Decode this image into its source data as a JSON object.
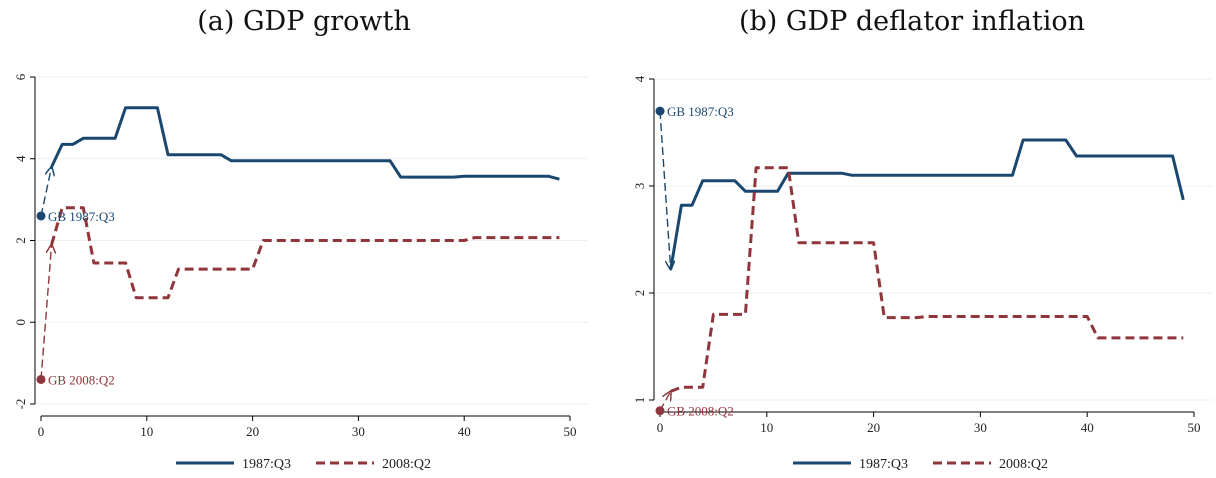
{
  "colors": {
    "series1": "#1a476f",
    "series2": "#90353b",
    "grid": "#eaf2f3",
    "axis": "#000000"
  },
  "chart_data": [
    {
      "type": "line",
      "title": "(a) GDP growth",
      "xlim": [
        0,
        50
      ],
      "ylim": [
        -2,
        6
      ],
      "xticks": [
        0,
        10,
        20,
        30,
        40,
        50
      ],
      "yticks": [
        -2,
        0,
        2,
        4,
        6
      ],
      "grid": true,
      "legend_position": "bottom",
      "series": [
        {
          "name": "1987:Q3",
          "style": "solid",
          "color": "#1a476f",
          "x": [
            1,
            2,
            3,
            4,
            5,
            6,
            7,
            8,
            9,
            10,
            11,
            12,
            13,
            14,
            15,
            16,
            17,
            18,
            19,
            20,
            21,
            22,
            23,
            24,
            25,
            26,
            27,
            28,
            29,
            30,
            31,
            32,
            33,
            34,
            35,
            36,
            37,
            38,
            39,
            40,
            41,
            42,
            43,
            44,
            45,
            46,
            47,
            48,
            49
          ],
          "y": [
            3.8,
            4.35,
            4.35,
            4.5,
            4.5,
            4.5,
            4.5,
            5.25,
            5.25,
            5.25,
            5.25,
            4.1,
            4.1,
            4.1,
            4.1,
            4.1,
            4.1,
            3.95,
            3.95,
            3.95,
            3.95,
            3.95,
            3.95,
            3.95,
            3.95,
            3.95,
            3.95,
            3.95,
            3.95,
            3.95,
            3.95,
            3.95,
            3.95,
            3.55,
            3.55,
            3.55,
            3.55,
            3.55,
            3.55,
            3.57,
            3.57,
            3.57,
            3.57,
            3.57,
            3.57,
            3.57,
            3.57,
            3.57,
            3.5
          ]
        },
        {
          "name": "2008:Q2",
          "style": "dashed",
          "color": "#90353b",
          "x": [
            1,
            2,
            3,
            4,
            5,
            6,
            7,
            8,
            9,
            10,
            11,
            12,
            13,
            14,
            15,
            16,
            17,
            18,
            19,
            20,
            21,
            22,
            23,
            24,
            25,
            26,
            27,
            28,
            29,
            30,
            31,
            32,
            33,
            34,
            35,
            36,
            37,
            38,
            39,
            40,
            41,
            42,
            43,
            44,
            45,
            46,
            47,
            48,
            49
          ],
          "y": [
            1.9,
            2.8,
            2.8,
            2.8,
            1.45,
            1.45,
            1.45,
            1.45,
            0.6,
            0.6,
            0.6,
            0.6,
            1.3,
            1.3,
            1.3,
            1.3,
            1.3,
            1.3,
            1.3,
            1.3,
            2.0,
            2.0,
            2.0,
            2.0,
            2.0,
            2.0,
            2.0,
            2.0,
            2.0,
            2.0,
            2.0,
            2.0,
            2.0,
            2.0,
            2.0,
            2.0,
            2.0,
            2.0,
            2.0,
            2.0,
            2.07,
            2.07,
            2.07,
            2.07,
            2.07,
            2.07,
            2.07,
            2.07,
            2.07
          ]
        }
      ],
      "annotations": [
        {
          "label": "GB 1987:Q3",
          "series": 0,
          "x": 0,
          "y": 2.6,
          "arrow_to": [
            1,
            3.8
          ]
        },
        {
          "label": "GB 2008:Q2",
          "series": 1,
          "x": 0,
          "y": -1.4,
          "arrow_to": [
            1,
            1.9
          ]
        }
      ]
    },
    {
      "type": "line",
      "title": "(b) GDP deflator inflation",
      "xlim": [
        0,
        50
      ],
      "ylim": [
        1,
        4
      ],
      "xticks": [
        0,
        10,
        20,
        30,
        40,
        50
      ],
      "yticks": [
        1,
        2,
        3,
        4
      ],
      "grid": true,
      "legend_position": "bottom",
      "series": [
        {
          "name": "1987:Q3",
          "style": "solid",
          "color": "#1a476f",
          "x": [
            1,
            2,
            3,
            4,
            5,
            6,
            7,
            8,
            9,
            10,
            11,
            12,
            13,
            14,
            15,
            16,
            17,
            18,
            19,
            20,
            21,
            22,
            23,
            24,
            25,
            26,
            27,
            28,
            29,
            30,
            31,
            32,
            33,
            34,
            35,
            36,
            37,
            38,
            39,
            40,
            41,
            42,
            43,
            44,
            45,
            46,
            47,
            48,
            49
          ],
          "y": [
            2.22,
            2.82,
            2.82,
            3.05,
            3.05,
            3.05,
            3.05,
            2.95,
            2.95,
            2.95,
            2.95,
            3.12,
            3.12,
            3.12,
            3.12,
            3.12,
            3.12,
            3.1,
            3.1,
            3.1,
            3.1,
            3.1,
            3.1,
            3.1,
            3.1,
            3.1,
            3.1,
            3.1,
            3.1,
            3.1,
            3.1,
            3.1,
            3.1,
            3.43,
            3.43,
            3.43,
            3.43,
            3.43,
            3.28,
            3.28,
            3.28,
            3.28,
            3.28,
            3.28,
            3.28,
            3.28,
            3.28,
            3.28,
            2.87
          ]
        },
        {
          "name": "2008:Q2",
          "style": "dashed",
          "color": "#90353b",
          "x": [
            1,
            2,
            3,
            4,
            5,
            6,
            7,
            8,
            9,
            10,
            11,
            12,
            13,
            14,
            15,
            16,
            17,
            18,
            19,
            20,
            21,
            22,
            23,
            24,
            25,
            26,
            27,
            28,
            29,
            30,
            31,
            32,
            33,
            34,
            35,
            36,
            37,
            38,
            39,
            40,
            41,
            42,
            43,
            44,
            45,
            46,
            47,
            48,
            49
          ],
          "y": [
            1.08,
            1.12,
            1.12,
            1.12,
            1.8,
            1.8,
            1.8,
            1.8,
            3.17,
            3.17,
            3.17,
            3.17,
            2.47,
            2.47,
            2.47,
            2.47,
            2.47,
            2.47,
            2.47,
            2.47,
            1.77,
            1.77,
            1.77,
            1.77,
            1.78,
            1.78,
            1.78,
            1.78,
            1.78,
            1.78,
            1.78,
            1.78,
            1.78,
            1.78,
            1.78,
            1.78,
            1.78,
            1.78,
            1.78,
            1.78,
            1.58,
            1.58,
            1.58,
            1.58,
            1.58,
            1.58,
            1.58,
            1.58,
            1.58
          ]
        }
      ],
      "annotations": [
        {
          "label": "GB 1987:Q3",
          "series": 0,
          "x": 0,
          "y": 3.7,
          "arrow_to": [
            1,
            2.22
          ]
        },
        {
          "label": "GB 2008:Q2",
          "series": 1,
          "x": 0,
          "y": 0.9,
          "arrow_to": [
            1,
            1.08
          ]
        }
      ]
    }
  ]
}
